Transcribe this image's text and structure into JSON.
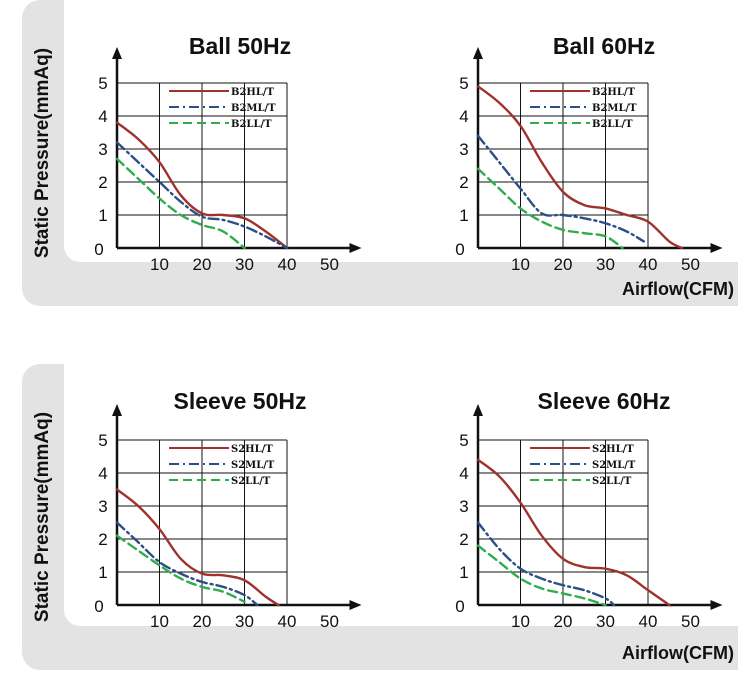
{
  "y_axis_label": "Static Pressure(mmAq)",
  "x_axis_label": "Airflow(CFM)",
  "colors": {
    "hi": "#a0322d",
    "mid": "#2c4f86",
    "lo": "#2fad4e"
  },
  "chart_data": [
    {
      "type": "line",
      "title": "Ball 50Hz",
      "x_ticks": [
        "10",
        "20",
        "30",
        "40",
        "50"
      ],
      "y_ticks": [
        "1",
        "2",
        "3",
        "4",
        "5"
      ],
      "origin_label": "0",
      "xlim": [
        0,
        50
      ],
      "ylim": [
        0,
        5
      ],
      "grid": true,
      "legend": "top-right",
      "series": [
        {
          "name": "B2HL/T",
          "style": "solid",
          "x": [
            0,
            5,
            10,
            15,
            20,
            25,
            30,
            35,
            40
          ],
          "y": [
            3.8,
            3.3,
            2.6,
            1.6,
            1.05,
            1.0,
            0.9,
            0.5,
            0
          ]
        },
        {
          "name": "B2ML/T",
          "style": "dashdot",
          "x": [
            0,
            5,
            10,
            15,
            20,
            25,
            30,
            35,
            40
          ],
          "y": [
            3.2,
            2.6,
            2.0,
            1.4,
            0.95,
            0.85,
            0.65,
            0.35,
            0
          ]
        },
        {
          "name": "B2LL/T",
          "style": "dashed",
          "x": [
            0,
            5,
            10,
            15,
            20,
            25,
            30
          ],
          "y": [
            2.7,
            2.1,
            1.5,
            1.0,
            0.7,
            0.5,
            0
          ]
        }
      ]
    },
    {
      "type": "line",
      "title": "Ball 60Hz",
      "x_ticks": [
        "10",
        "20",
        "30",
        "40",
        "50"
      ],
      "y_ticks": [
        "1",
        "2",
        "3",
        "4",
        "5"
      ],
      "origin_label": "0",
      "xlim": [
        0,
        50
      ],
      "ylim": [
        0,
        5
      ],
      "grid": true,
      "legend": "top-right",
      "series": [
        {
          "name": "B2HL/T",
          "style": "solid",
          "x": [
            0,
            5,
            10,
            15,
            20,
            25,
            30,
            35,
            40,
            45,
            48
          ],
          "y": [
            4.9,
            4.4,
            3.7,
            2.6,
            1.7,
            1.3,
            1.2,
            1.0,
            0.8,
            0.2,
            0
          ]
        },
        {
          "name": "B2ML/T",
          "style": "dashdot",
          "x": [
            0,
            5,
            10,
            15,
            20,
            25,
            30,
            35,
            39
          ],
          "y": [
            3.4,
            2.6,
            1.8,
            1.05,
            1.0,
            0.9,
            0.75,
            0.5,
            0.2
          ]
        },
        {
          "name": "B2LL/T",
          "style": "dashed",
          "x": [
            0,
            5,
            10,
            15,
            20,
            25,
            30,
            34
          ],
          "y": [
            2.4,
            1.8,
            1.2,
            0.8,
            0.55,
            0.45,
            0.35,
            0
          ]
        }
      ]
    },
    {
      "type": "line",
      "title": "Sleeve 50Hz",
      "x_ticks": [
        "10",
        "20",
        "30",
        "40",
        "50"
      ],
      "y_ticks": [
        "1",
        "2",
        "3",
        "4",
        "5"
      ],
      "origin_label": "0",
      "xlim": [
        0,
        50
      ],
      "ylim": [
        0,
        5
      ],
      "grid": true,
      "legend": "top-right",
      "series": [
        {
          "name": "S2HL/T",
          "style": "solid",
          "x": [
            0,
            5,
            10,
            15,
            20,
            25,
            30,
            35,
            38
          ],
          "y": [
            3.5,
            3.0,
            2.3,
            1.4,
            0.95,
            0.9,
            0.75,
            0.25,
            0
          ]
        },
        {
          "name": "S2ML/T",
          "style": "dashdot",
          "x": [
            0,
            5,
            10,
            15,
            20,
            25,
            30,
            33
          ],
          "y": [
            2.5,
            1.9,
            1.3,
            0.95,
            0.7,
            0.55,
            0.3,
            0
          ]
        },
        {
          "name": "S2LL/T",
          "style": "dashed",
          "x": [
            0,
            5,
            10,
            15,
            20,
            25,
            30
          ],
          "y": [
            2.1,
            1.65,
            1.2,
            0.8,
            0.55,
            0.4,
            0.1
          ]
        }
      ]
    },
    {
      "type": "line",
      "title": "Sleeve 60Hz",
      "x_ticks": [
        "10",
        "20",
        "30",
        "40",
        "50"
      ],
      "y_ticks": [
        "1",
        "2",
        "3",
        "4",
        "5"
      ],
      "origin_label": "0",
      "xlim": [
        0,
        50
      ],
      "ylim": [
        0,
        5
      ],
      "grid": true,
      "legend": "top-right",
      "series": [
        {
          "name": "S2HL/T",
          "style": "solid",
          "x": [
            0,
            5,
            10,
            15,
            20,
            25,
            30,
            35,
            40,
            45
          ],
          "y": [
            4.4,
            3.9,
            3.1,
            2.1,
            1.4,
            1.15,
            1.1,
            0.9,
            0.45,
            0
          ]
        },
        {
          "name": "S2ML/T",
          "style": "dashdot",
          "x": [
            0,
            5,
            10,
            15,
            20,
            25,
            30,
            32
          ],
          "y": [
            2.5,
            1.7,
            1.1,
            0.8,
            0.6,
            0.45,
            0.2,
            0
          ]
        },
        {
          "name": "S2LL/T",
          "style": "dashed",
          "x": [
            0,
            5,
            10,
            15,
            20,
            25,
            30
          ],
          "y": [
            1.8,
            1.3,
            0.8,
            0.5,
            0.35,
            0.2,
            0
          ]
        }
      ]
    }
  ]
}
